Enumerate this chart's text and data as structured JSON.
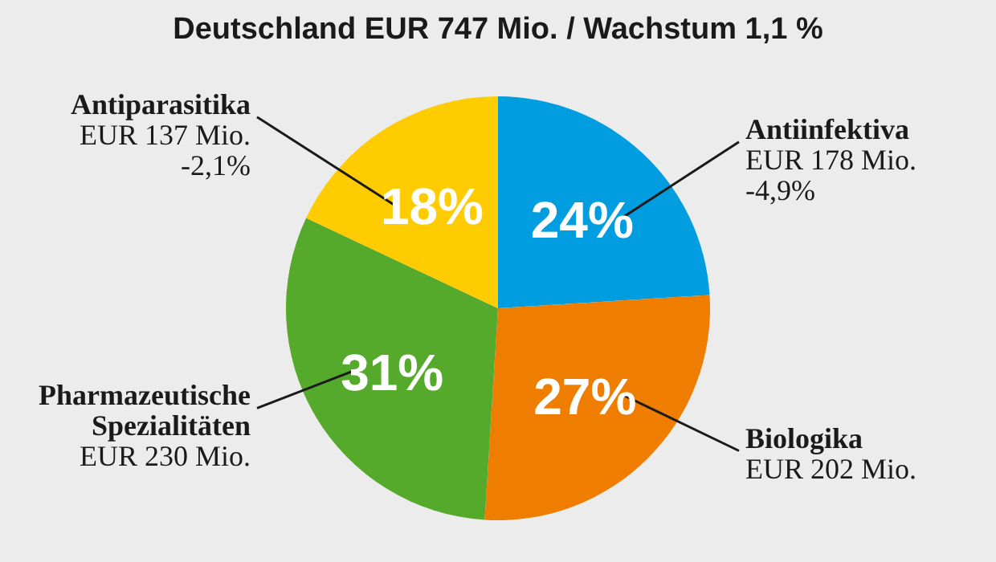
{
  "chart_data": {
    "type": "pie",
    "title": "Deutschland EUR 747 Mio. / Wachstum 1,1 %",
    "categories": [
      "Antiinfektiva",
      "Biologika",
      "Pharmazeutische Spezialitäten",
      "Antiparasitika"
    ],
    "values": [
      24,
      27,
      31,
      18
    ],
    "colors": [
      "#009ee0",
      "#ef7d00",
      "#56aa2b",
      "#fecc00"
    ],
    "value_labels": [
      "24%",
      "27%",
      "31%",
      "18%"
    ],
    "annotations": [
      {
        "text": "EUR 178 Mio.",
        "x": "Antiinfektiva"
      },
      {
        "text": "-4,9%",
        "x": "Antiinfektiva"
      },
      {
        "text": "EUR 202 Mio.",
        "x": "Biologika"
      },
      {
        "text": "EUR 230 Mio.",
        "x": "Pharmazeutische Spezialitäten"
      },
      {
        "text": "EUR 137 Mio.",
        "x": "Antiparasitika"
      },
      {
        "text": "-2,1%",
        "x": "Antiparasitika"
      }
    ]
  }
}
